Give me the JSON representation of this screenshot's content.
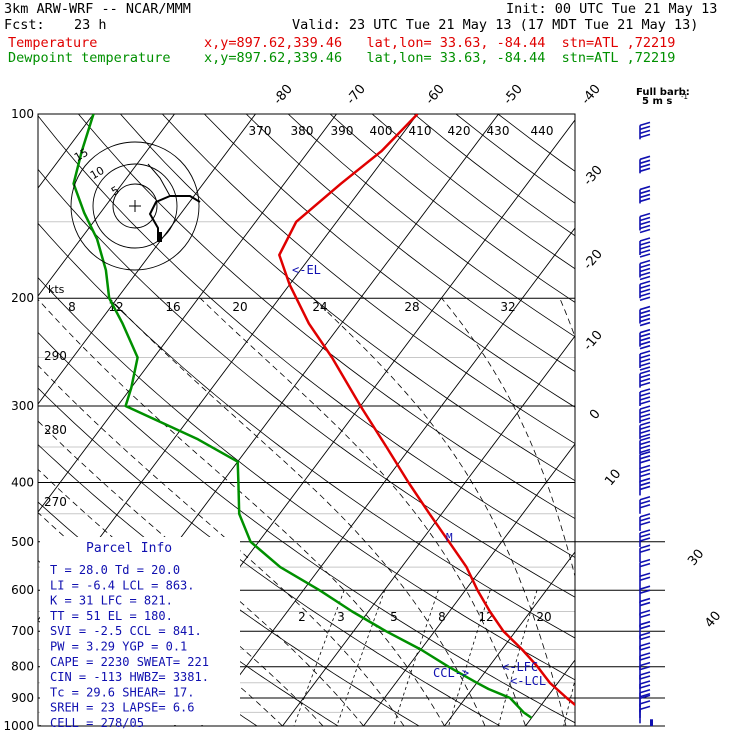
{
  "header": {
    "model": "3km ARW-WRF -- NCAR/MMM",
    "init": "Init: 00 UTC Tue 21 May 13",
    "fcst_label": "Fcst:",
    "fcst_value": "23 h",
    "valid": "Valid: 23 UTC Tue 21 May 13 (17 MDT Tue 21 May 13)",
    "legend": [
      {
        "name": "Temperature",
        "info": "x,y=897.62,339.46   lat,lon= 33.63, -84.44  stn=ATL ,72219",
        "color": "#e00000"
      },
      {
        "name": "Dewpoint temperature",
        "info": "x,y=897.62,339.46   lat,lon= 33.63, -84.44  stn=ATL ,72219",
        "color": "#009000"
      }
    ]
  },
  "barb_key": {
    "title": "Full barb:",
    "value": "5 m s",
    "exp": "-1"
  },
  "hodograph": {
    "unit": "kts",
    "ring_labels": [
      "5",
      "10",
      "15"
    ]
  },
  "chart_data": {
    "type": "line",
    "title": "",
    "pressure_levels": [
      100,
      200,
      300,
      400,
      500,
      600,
      700,
      800,
      900,
      1000
    ],
    "pressure_labels": [
      "100",
      "200",
      "300",
      "400",
      "500",
      "600",
      "700",
      "800",
      "900",
      "1000"
    ],
    "isotherm_labels": [
      "-80",
      "-70",
      "-60",
      "-50",
      "-40",
      "-30",
      "-20",
      "-10",
      "0",
      "10",
      "30",
      "40"
    ],
    "theta_labels": [
      "370",
      "380",
      "390",
      "400",
      "410",
      "420",
      "430",
      "440"
    ],
    "mixing_ratio_upper_labels": [
      "8",
      "12",
      "16",
      "20",
      "24",
      "28",
      "32"
    ],
    "mixing_ratio_lower_labels": [
      "2",
      "3",
      "5",
      "8",
      "12",
      "20"
    ],
    "dry_adiabat_labels": [
      "290",
      "280",
      "270"
    ],
    "annotations": [
      "<-EL",
      "<-LFC",
      "<-LCL",
      "CCL->",
      "M"
    ],
    "series": [
      {
        "name": "Temperature",
        "color": "#e00000",
        "points": [
          [
            970,
            28
          ],
          [
            950,
            26
          ],
          [
            900,
            22.5
          ],
          [
            850,
            19
          ],
          [
            800,
            16
          ],
          [
            750,
            12.5
          ],
          [
            700,
            8.5
          ],
          [
            650,
            5
          ],
          [
            600,
            1.5
          ],
          [
            550,
            -2
          ],
          [
            500,
            -6.5
          ],
          [
            450,
            -11.5
          ],
          [
            400,
            -17
          ],
          [
            350,
            -23
          ],
          [
            300,
            -30
          ],
          [
            250,
            -38
          ],
          [
            220,
            -44
          ],
          [
            190,
            -50
          ],
          [
            170,
            -54
          ],
          [
            150,
            -55
          ],
          [
            130,
            -53
          ],
          [
            115,
            -51
          ],
          [
            100,
            -50
          ]
        ]
      },
      {
        "name": "Dewpoint temperature",
        "color": "#009000",
        "points": [
          [
            970,
            20
          ],
          [
            950,
            18.5
          ],
          [
            900,
            15.5
          ],
          [
            870,
            12
          ],
          [
            850,
            10
          ],
          [
            800,
            5
          ],
          [
            750,
            0
          ],
          [
            700,
            -6
          ],
          [
            650,
            -12
          ],
          [
            600,
            -18
          ],
          [
            550,
            -25
          ],
          [
            500,
            -31
          ],
          [
            450,
            -35
          ],
          [
            400,
            -38
          ],
          [
            370,
            -40
          ],
          [
            340,
            -47
          ],
          [
            300,
            -59
          ],
          [
            280,
            -60
          ],
          [
            250,
            -62
          ],
          [
            220,
            -67
          ],
          [
            200,
            -71
          ],
          [
            180,
            -74
          ],
          [
            160,
            -78
          ],
          [
            145,
            -82
          ],
          [
            130,
            -86
          ],
          [
            115,
            -88
          ],
          [
            100,
            -90
          ]
        ]
      }
    ],
    "wind_barbs": [
      {
        "p": 110,
        "speed": 20
      },
      {
        "p": 125,
        "speed": 20
      },
      {
        "p": 140,
        "speed": 20
      },
      {
        "p": 155,
        "speed": 25
      },
      {
        "p": 170,
        "speed": 25
      },
      {
        "p": 185,
        "speed": 25
      },
      {
        "p": 200,
        "speed": 25
      },
      {
        "p": 220,
        "speed": 25
      },
      {
        "p": 240,
        "speed": 25
      },
      {
        "p": 260,
        "speed": 25
      },
      {
        "p": 280,
        "speed": 20
      },
      {
        "p": 300,
        "speed": 20
      },
      {
        "p": 320,
        "speed": 20
      },
      {
        "p": 340,
        "speed": 20
      },
      {
        "p": 360,
        "speed": 20
      },
      {
        "p": 380,
        "speed": 15
      },
      {
        "p": 400,
        "speed": 15
      },
      {
        "p": 420,
        "speed": 15
      },
      {
        "p": 450,
        "speed": 15
      },
      {
        "p": 480,
        "speed": 15
      },
      {
        "p": 510,
        "speed": 15
      },
      {
        "p": 540,
        "speed": 10
      },
      {
        "p": 570,
        "speed": 10
      },
      {
        "p": 600,
        "speed": 10
      },
      {
        "p": 630,
        "speed": 10
      },
      {
        "p": 660,
        "speed": 10
      },
      {
        "p": 690,
        "speed": 10
      },
      {
        "p": 720,
        "speed": 10
      },
      {
        "p": 750,
        "speed": 10
      },
      {
        "p": 780,
        "speed": 10
      },
      {
        "p": 810,
        "speed": 10
      },
      {
        "p": 840,
        "speed": 10
      },
      {
        "p": 870,
        "speed": 10
      },
      {
        "p": 900,
        "speed": 10
      },
      {
        "p": 930,
        "speed": 10
      },
      {
        "p": 950,
        "speed": 5
      },
      {
        "p": 970,
        "speed": 5
      },
      {
        "p": 990,
        "speed": 5
      }
    ]
  },
  "parcel_info": {
    "title": "Parcel Info",
    "rows": [
      "T  =    28.0  Td =  20.0",
      "LI =    -6.4  LCL =  863.",
      "K  =      31  LFC =  821.",
      "TT =      51  EL  =  180.",
      "SVI =   -2.5  CCL =  841.",
      "PW  =   3.29  YGP =   0.1",
      "CAPE =  2230  SWEAT=  221",
      "CIN  =  -113  HWBZ= 3381.",
      "Tc   =  29.6  SHEAR=  17.",
      "SREH =    23  LAPSE=  6.6",
      "CELL = 278/05"
    ]
  }
}
